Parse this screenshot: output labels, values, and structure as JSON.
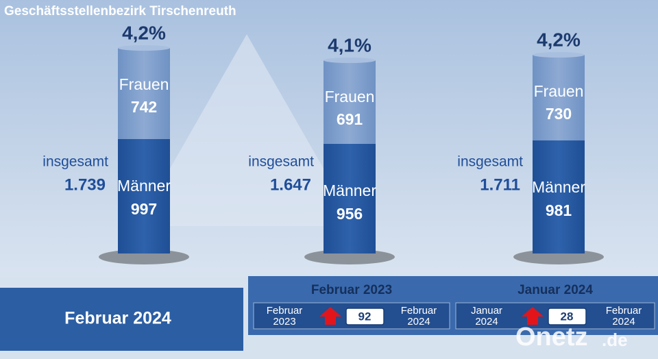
{
  "title": "Geschäftsstellenbezirk Tirschenreuth",
  "columns": [
    {
      "rate": "4,2%",
      "women_label": "Frauen",
      "women": "742",
      "men_label": "Männer",
      "men": "997",
      "total_label": "insgesamt",
      "total": "1.739"
    },
    {
      "rate": "4,1%",
      "women_label": "Frauen",
      "women": "691",
      "men_label": "Männer",
      "men": "956",
      "total_label": "insgesamt",
      "total": "1.647"
    },
    {
      "rate": "4,2%",
      "women_label": "Frauen",
      "women": "730",
      "men_label": "Männer",
      "men": "981",
      "total_label": "insgesamt",
      "total": "1.711"
    }
  ],
  "footer": {
    "current": "Februar 2024",
    "comparisons": [
      {
        "title": "Februar 2023",
        "from": [
          "Februar",
          "2023"
        ],
        "change": "92",
        "to": [
          "Februar",
          "2024"
        ]
      },
      {
        "title": "Januar 2024",
        "from": [
          "Januar",
          "2024"
        ],
        "change": "28",
        "to": [
          "Februar",
          "2024"
        ]
      }
    ]
  },
  "watermark": {
    "name": "Onetz",
    "suffix": ".de"
  }
}
